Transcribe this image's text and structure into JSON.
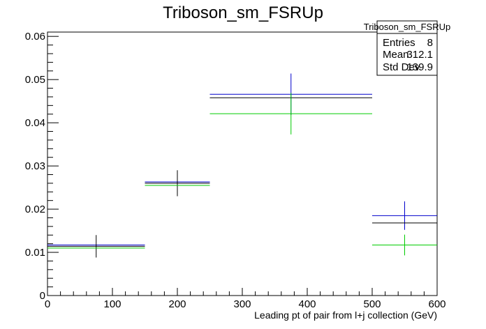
{
  "chart_data": {
    "type": "histogram-errorbars",
    "title": "Triboson_sm_FSRUp",
    "xlabel": "Leading pt of pair from l+j collection (GeV)",
    "ylabel": "",
    "xlim": [
      0,
      600
    ],
    "ylim": [
      0,
      0.061
    ],
    "x_ticks": [
      0,
      100,
      200,
      300,
      400,
      500,
      600
    ],
    "x_tick_labels": [
      "0",
      "100",
      "200",
      "300",
      "400",
      "500",
      "600"
    ],
    "y_ticks": [
      0,
      0.01,
      0.02,
      0.03,
      0.04,
      0.05,
      0.06
    ],
    "y_tick_labels": [
      "0",
      "0.01",
      "0.02",
      "0.03",
      "0.04",
      "0.05",
      "0.06"
    ],
    "bins": [
      {
        "low": 0,
        "high": 150
      },
      {
        "low": 150,
        "high": 250
      },
      {
        "low": 250,
        "high": 500
      },
      {
        "low": 500,
        "high": 600
      }
    ],
    "series": [
      {
        "color": "#0000cc",
        "values": [
          0.0117,
          0.0263,
          0.0466,
          0.0185
        ],
        "errors": [
          0.0,
          0.0,
          0.0048,
          0.0033
        ]
      },
      {
        "color": "#000000",
        "values": [
          0.0114,
          0.026,
          0.0458,
          0.0168
        ],
        "errors": [
          0.0026,
          0.003,
          0.0,
          0.0
        ]
      },
      {
        "color": "#00cc00",
        "values": [
          0.011,
          0.0255,
          0.0421,
          0.0117
        ],
        "errors": [
          0.0,
          0.0,
          0.0048,
          0.0024
        ]
      }
    ],
    "grid": false,
    "stats_box": {
      "title": "Triboson_sm_FSRUp",
      "rows": [
        {
          "label": "Entries",
          "value": "8"
        },
        {
          "label": "Mean",
          "value": "312.1"
        },
        {
          "label": "Std Dev",
          "value": "139.9"
        }
      ]
    }
  }
}
